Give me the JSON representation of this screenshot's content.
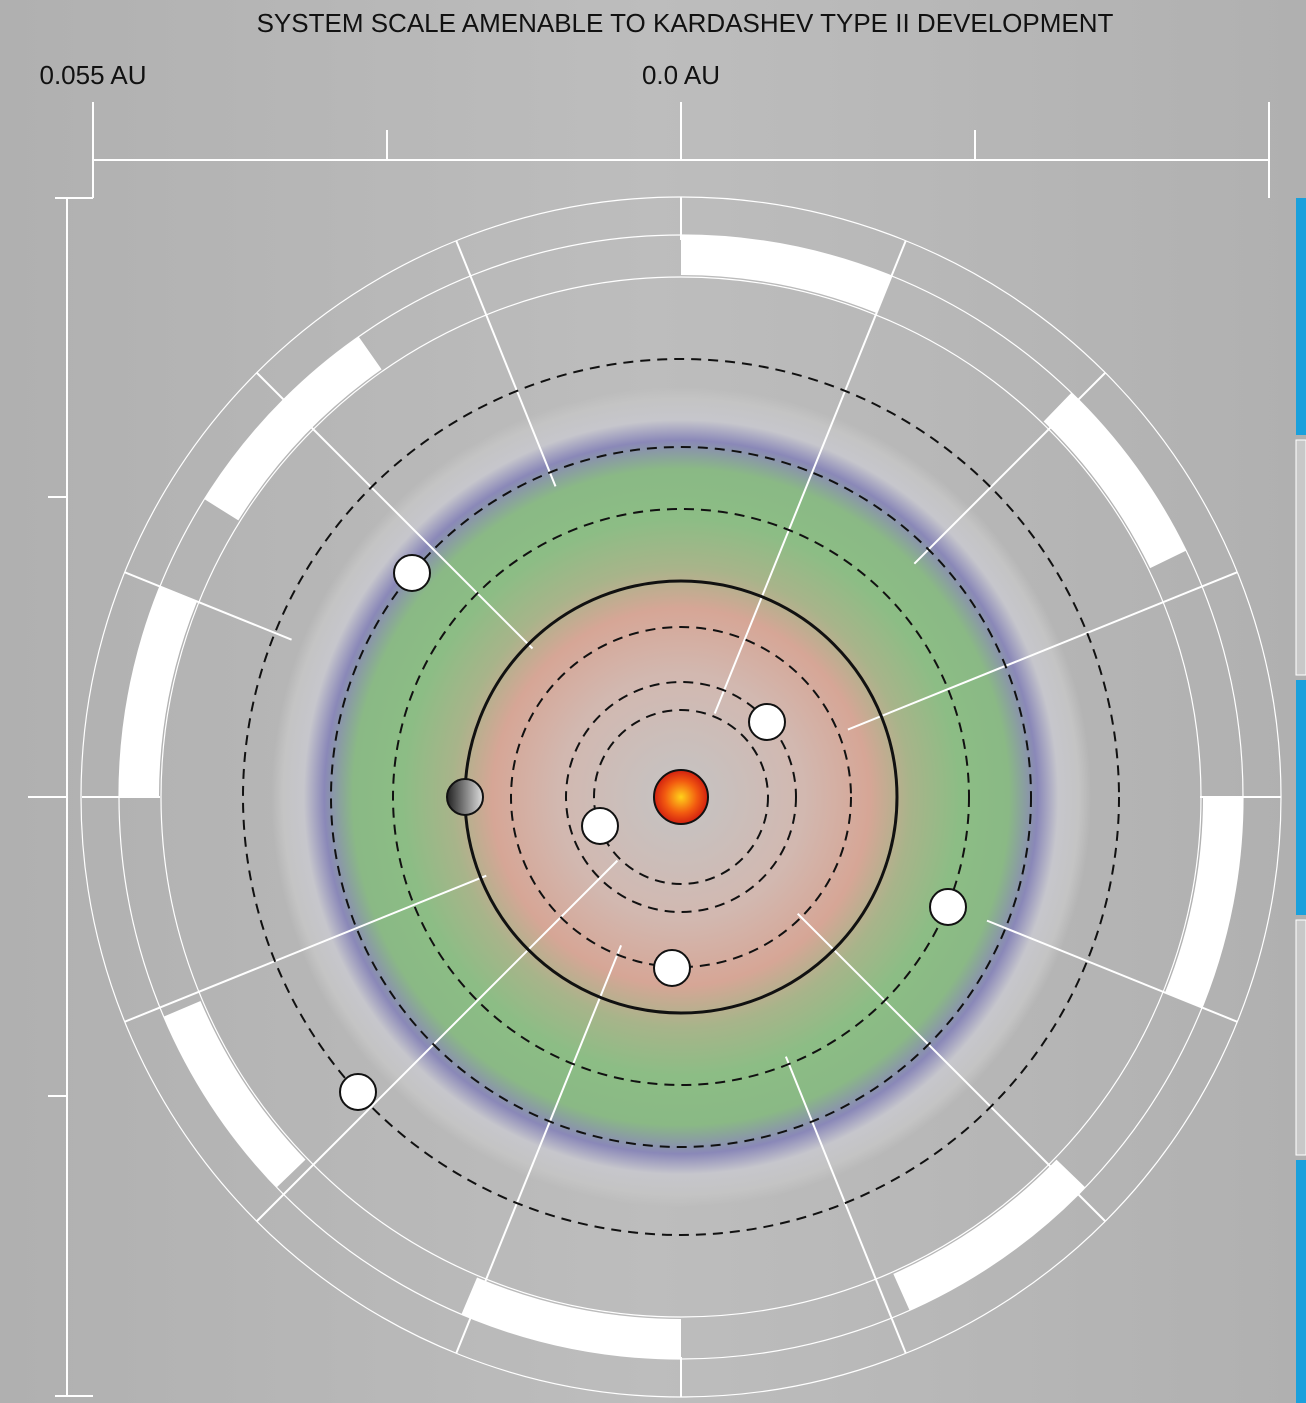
{
  "header": {
    "title": "SYSTEM SCALE AMENABLE TO KARDASHEV TYPE II  DEVELOPMENT"
  },
  "scale": {
    "left_label": "0.055 AU",
    "center_label": "0.0 AU"
  }
}
